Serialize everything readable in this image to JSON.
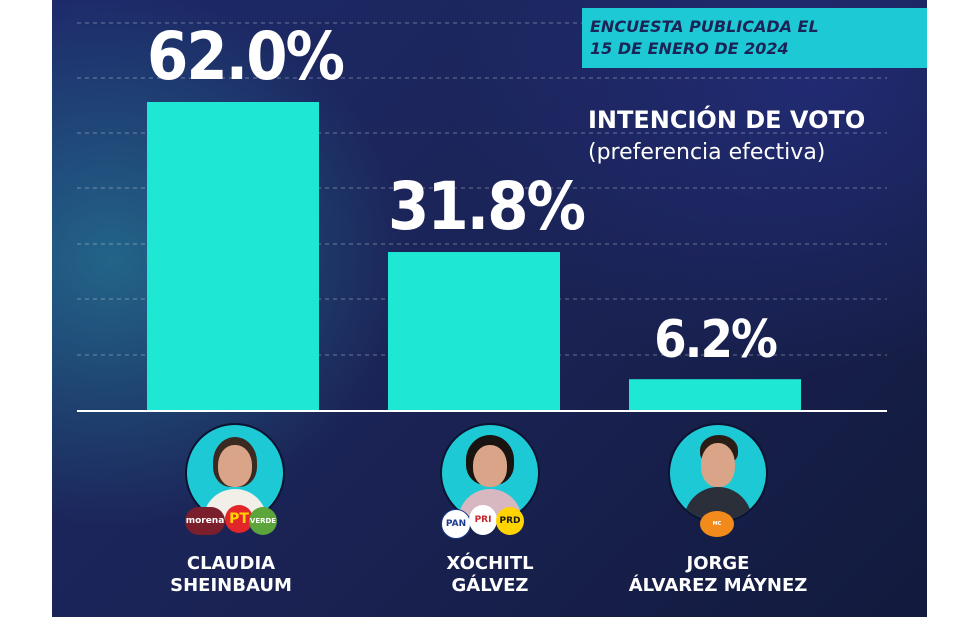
{
  "header": {
    "date_line1": "ENCUESTA PUBLICADA EL",
    "date_line2": "15 DE ENERO DE 2024"
  },
  "chart_data": {
    "type": "bar",
    "title": "INTENCIÓN DE VOTO",
    "subtitle": "(preferencia efectiva)",
    "categories": [
      "CLAUDIA SHEINBAUM",
      "XÓCHITL GÁLVEZ",
      "JORGE ÁLVAREZ MÁYNEZ"
    ],
    "values": [
      62.0,
      31.8,
      6.2
    ],
    "data_labels": [
      "62.0%",
      "31.8%",
      "6.2%"
    ],
    "ylim": [
      0,
      62
    ],
    "grid": true,
    "bar_color": "#1ee8d4"
  },
  "candidates": [
    {
      "name_line1": "CLAUDIA",
      "name_line2": "SHEINBAUM",
      "party_logos": [
        "morena",
        "PT",
        "VERDE"
      ]
    },
    {
      "name_line1": "XÓCHITL",
      "name_line2": "GÁLVEZ",
      "party_logos": [
        "PAN",
        "PRI",
        "PRD"
      ]
    },
    {
      "name_line1": "JORGE",
      "name_line2": "ÁLVAREZ MÁYNEZ",
      "party_logos": [
        "MOVIMIENTO CIUDADANO"
      ]
    }
  ],
  "colors": {
    "background": "#1b2457",
    "accent": "#1ec9d6",
    "bar": "#1ee8d4",
    "text": "#ffffff"
  }
}
